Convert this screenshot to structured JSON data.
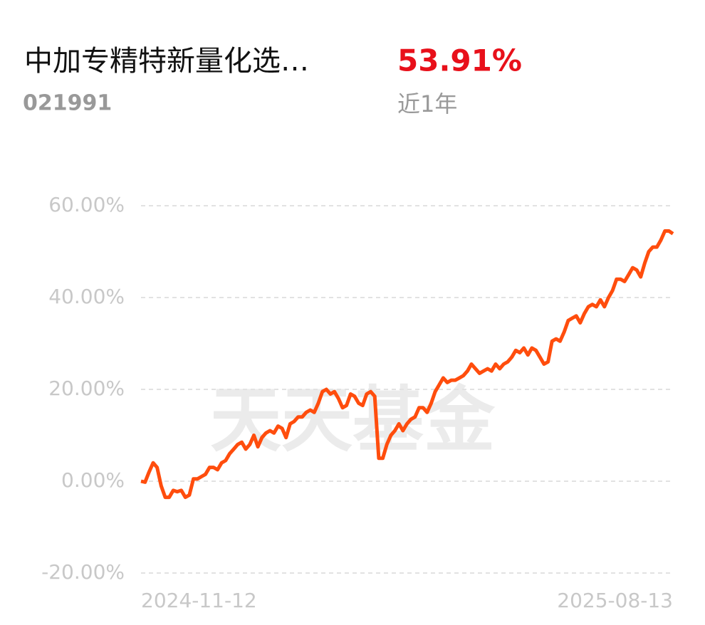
{
  "header": {
    "name": "中加专精特新量化选…",
    "code": "021991",
    "return": "53.91%",
    "period": "近1年"
  },
  "watermark": "天天基金",
  "chart_data": {
    "type": "line",
    "x": [
      "2024-11-12",
      null,
      null,
      null,
      null,
      null,
      null,
      null,
      null,
      null,
      null,
      null,
      null,
      null,
      null,
      null,
      null,
      null,
      null,
      null,
      null,
      null,
      null,
      null,
      null,
      null,
      null,
      null,
      null,
      null,
      null,
      null,
      null,
      null,
      null,
      null,
      null,
      null,
      null,
      null,
      null,
      null,
      null,
      null,
      null,
      null,
      null,
      null,
      null,
      null,
      null,
      null,
      null,
      null,
      null,
      null,
      null,
      null,
      null,
      null,
      null,
      null,
      null,
      null,
      null,
      null,
      null,
      null,
      null,
      null,
      null,
      null,
      null,
      null,
      null,
      null,
      null,
      null,
      null,
      null,
      null,
      null,
      null,
      null,
      null,
      null,
      null,
      null,
      null,
      null,
      null,
      null,
      null,
      null,
      null,
      null,
      null,
      null,
      null,
      null,
      null,
      null,
      null,
      null,
      null,
      null,
      null,
      null,
      null,
      null,
      null,
      null,
      null,
      null,
      null,
      null,
      null,
      null,
      null,
      null,
      null,
      null,
      null,
      null,
      null,
      null,
      null,
      null,
      null,
      null,
      null,
      null,
      "2025-08-13"
    ],
    "series": [
      {
        "color": "#ff4d0d",
        "values": [
          0,
          -0.2,
          2,
          4,
          3,
          -1,
          -3.5,
          -3.5,
          -2,
          -2.3,
          -2,
          -3.5,
          -3,
          0.5,
          0.5,
          1,
          1.5,
          3,
          3,
          2.5,
          4,
          4.5,
          6,
          7,
          8,
          8.5,
          7,
          8,
          10,
          7.5,
          9.5,
          10.5,
          11,
          10.5,
          12,
          11.5,
          9.5,
          12.5,
          13,
          14,
          14,
          15,
          15.5,
          15,
          17,
          19.5,
          20,
          19,
          19.5,
          18,
          16,
          16.5,
          19,
          18.5,
          17,
          16.5,
          19,
          19.5,
          18.5,
          5,
          5,
          8,
          10,
          11,
          12.5,
          11,
          12.5,
          13.5,
          14,
          16,
          16,
          15,
          17,
          19.5,
          21,
          22.5,
          21.5,
          22,
          22,
          22.5,
          23,
          24,
          25.5,
          24.5,
          23.5,
          24,
          24.5,
          24,
          25.5,
          24.5,
          25.5,
          26,
          27,
          28.5,
          28,
          29,
          27.5,
          29,
          28.5,
          27,
          25.5,
          26,
          30.5,
          31,
          30.5,
          32.5,
          35,
          35.5,
          36,
          34.5,
          36.5,
          38,
          38.5,
          38,
          39.5,
          38,
          40,
          41.5,
          44,
          44,
          43.5,
          45,
          46.5,
          46,
          44.5,
          47.5,
          50,
          51,
          51,
          52.5,
          54.5,
          54.5,
          53.91
        ]
      }
    ],
    "ylim": [
      -20,
      60
    ],
    "yticks": [
      {
        "value": -20,
        "label": "-20.00%"
      },
      {
        "value": 0,
        "label": "0.00%"
      },
      {
        "value": 20,
        "label": "20.00%"
      },
      {
        "value": 40,
        "label": "40.00%"
      },
      {
        "value": 60,
        "label": "60.00%"
      }
    ],
    "grid": true
  }
}
